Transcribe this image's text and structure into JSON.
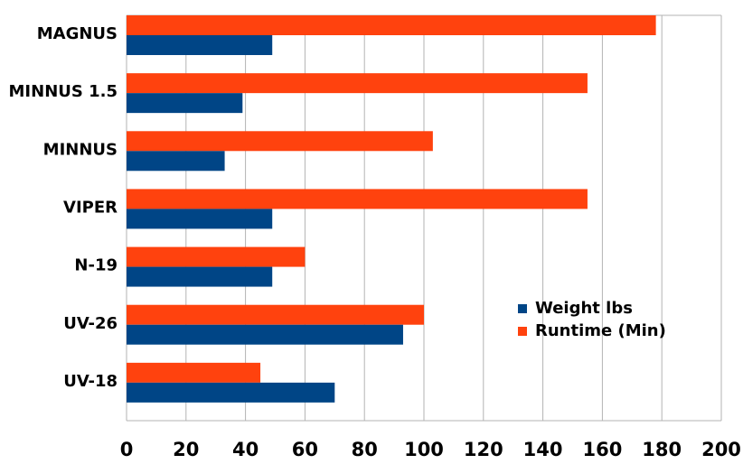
{
  "chart_data": {
    "type": "hbar",
    "categories": [
      "MAGNUS",
      "MINNUS 1.5",
      "MINNUS",
      "VIPER",
      "N-19",
      "UV-26",
      "UV-18"
    ],
    "series": [
      {
        "name": "Weight lbs",
        "color": "#004586",
        "values": [
          49,
          39,
          33,
          49,
          49,
          93,
          70
        ]
      },
      {
        "name": "Runtime (Min)",
        "color": "#ff420e",
        "values": [
          178,
          155,
          103,
          155,
          60,
          100,
          45
        ]
      }
    ],
    "xlim": [
      0,
      200
    ],
    "xticks": [
      0,
      20,
      40,
      60,
      80,
      100,
      120,
      140,
      160,
      180,
      200
    ],
    "grid": true
  }
}
